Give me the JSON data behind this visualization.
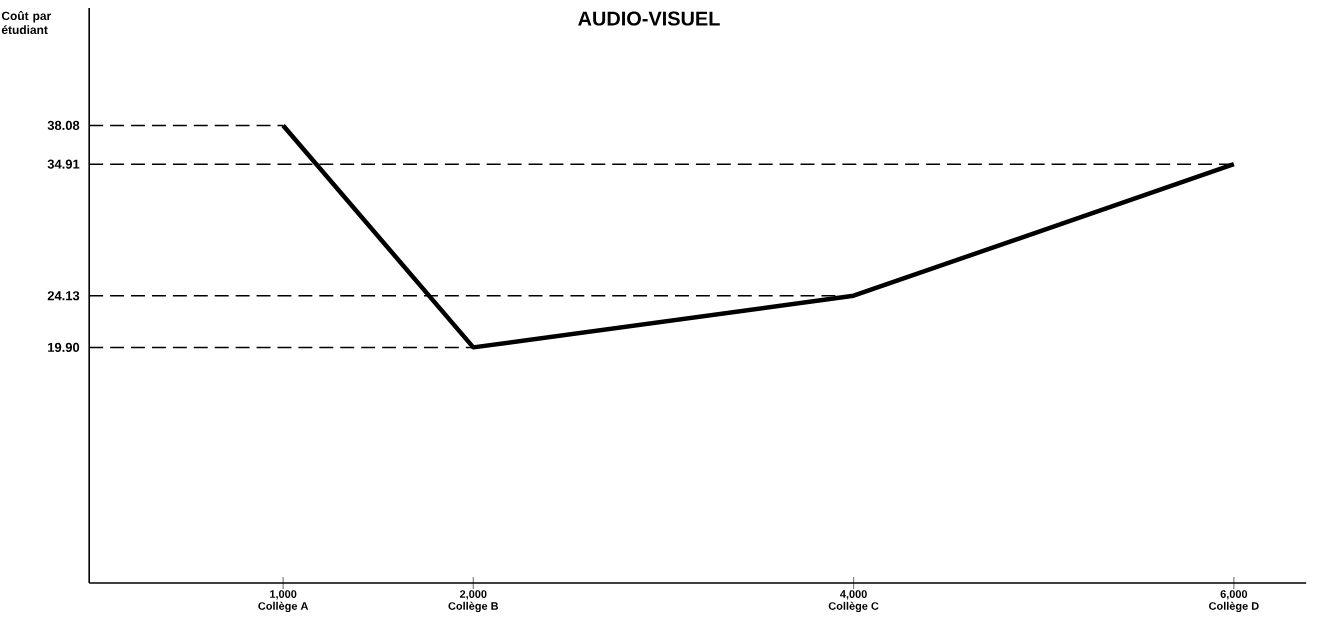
{
  "chart_data": {
    "type": "line",
    "title": "AUDIO-VISUEL",
    "ylabel": "Coût par étudiant",
    "x": [
      1000,
      2000,
      4000,
      6000
    ],
    "series": [
      {
        "color": "#000000",
        "values": [
          38.08,
          19.9,
          24.13,
          34.91
        ]
      }
    ],
    "xlim": [
      -20,
      6380
    ],
    "ylim": [
      0.6,
      47.7
    ],
    "xticks": [
      {
        "value": 1000,
        "label": "1,000"
      },
      {
        "value": 2000,
        "label": "2,000"
      },
      {
        "value": 4000,
        "label": "4,000"
      },
      {
        "value": 6000,
        "label": "6,000"
      }
    ],
    "yticks": [
      {
        "value": 19.9,
        "label": "19.90"
      },
      24.13,
      34.91,
      38.08
    ],
    "annotations": [
      "Collège A",
      "Collège B",
      "Collège C",
      "Collège D"
    ],
    "ref_lines": [
      {
        "axis": "y",
        "value": 38.08,
        "line_style": "dashed",
        "color": "#000000"
      },
      {
        "axis": "y",
        "value": 34.91,
        "line_style": "dashed",
        "color": "#000000"
      },
      {
        "axis": "y",
        "value": 24.13,
        "line_style": "dashed",
        "color": "#000000"
      },
      {
        "axis": "y",
        "value": 19.9,
        "line_style": "dashed",
        "color": "#000000"
      }
    ],
    "marker": "none",
    "line_style": "solid"
  }
}
